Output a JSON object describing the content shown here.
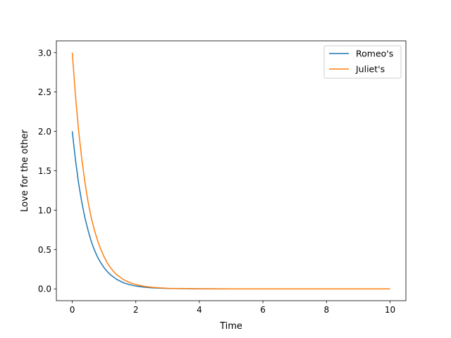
{
  "chart_data": {
    "type": "line",
    "title": "",
    "xlabel": "Time",
    "ylabel": "Love for the other",
    "xlim": [
      -0.5,
      10.5
    ],
    "ylim": [
      -0.15,
      3.15
    ],
    "xticks": [
      0,
      2,
      4,
      6,
      8,
      10
    ],
    "yticks": [
      0.0,
      0.5,
      1.0,
      1.5,
      2.0,
      2.5,
      3.0
    ],
    "xtick_labels": [
      "0",
      "2",
      "4",
      "6",
      "8",
      "10"
    ],
    "ytick_labels": [
      "0.0",
      "0.5",
      "1.0",
      "1.5",
      "2.0",
      "2.5",
      "3.0"
    ],
    "grid": false,
    "legend_position": "top-right",
    "series": [
      {
        "name": "Romeo's",
        "color": "#1f77b4",
        "x": [
          0,
          0.1,
          0.2,
          0.3,
          0.4,
          0.5,
          0.6,
          0.7,
          0.8,
          0.9,
          1.0,
          1.1,
          1.2,
          1.3,
          1.4,
          1.5,
          1.6,
          1.7,
          1.8,
          1.9,
          2.0,
          2.25,
          2.5,
          3,
          4,
          5,
          6,
          7,
          8,
          9,
          10
        ],
        "y": [
          2.0,
          1.64,
          1.34,
          1.1,
          0.9,
          0.74,
          0.6,
          0.49,
          0.4,
          0.33,
          0.27,
          0.22,
          0.18,
          0.15,
          0.12,
          0.1,
          0.08,
          0.066,
          0.054,
          0.044,
          0.036,
          0.022,
          0.013,
          0.005,
          0.0007,
          0.0001,
          0.0,
          0.0,
          0.0,
          0.0,
          0.0
        ]
      },
      {
        "name": "Juliet's",
        "color": "#ff7f0e",
        "x": [
          0,
          0.1,
          0.2,
          0.3,
          0.4,
          0.5,
          0.6,
          0.7,
          0.8,
          0.9,
          1.0,
          1.1,
          1.2,
          1.3,
          1.4,
          1.5,
          1.6,
          1.7,
          1.8,
          1.9,
          2.0,
          2.25,
          2.5,
          3,
          4,
          5,
          6,
          7,
          8,
          9,
          10
        ],
        "y": [
          3.0,
          2.46,
          2.01,
          1.65,
          1.35,
          1.1,
          0.9,
          0.74,
          0.61,
          0.5,
          0.41,
          0.33,
          0.27,
          0.22,
          0.18,
          0.15,
          0.12,
          0.1,
          0.082,
          0.067,
          0.055,
          0.033,
          0.02,
          0.007,
          0.001,
          0.0002,
          0.0,
          0.0,
          0.0,
          0.0,
          0.0
        ]
      }
    ]
  }
}
